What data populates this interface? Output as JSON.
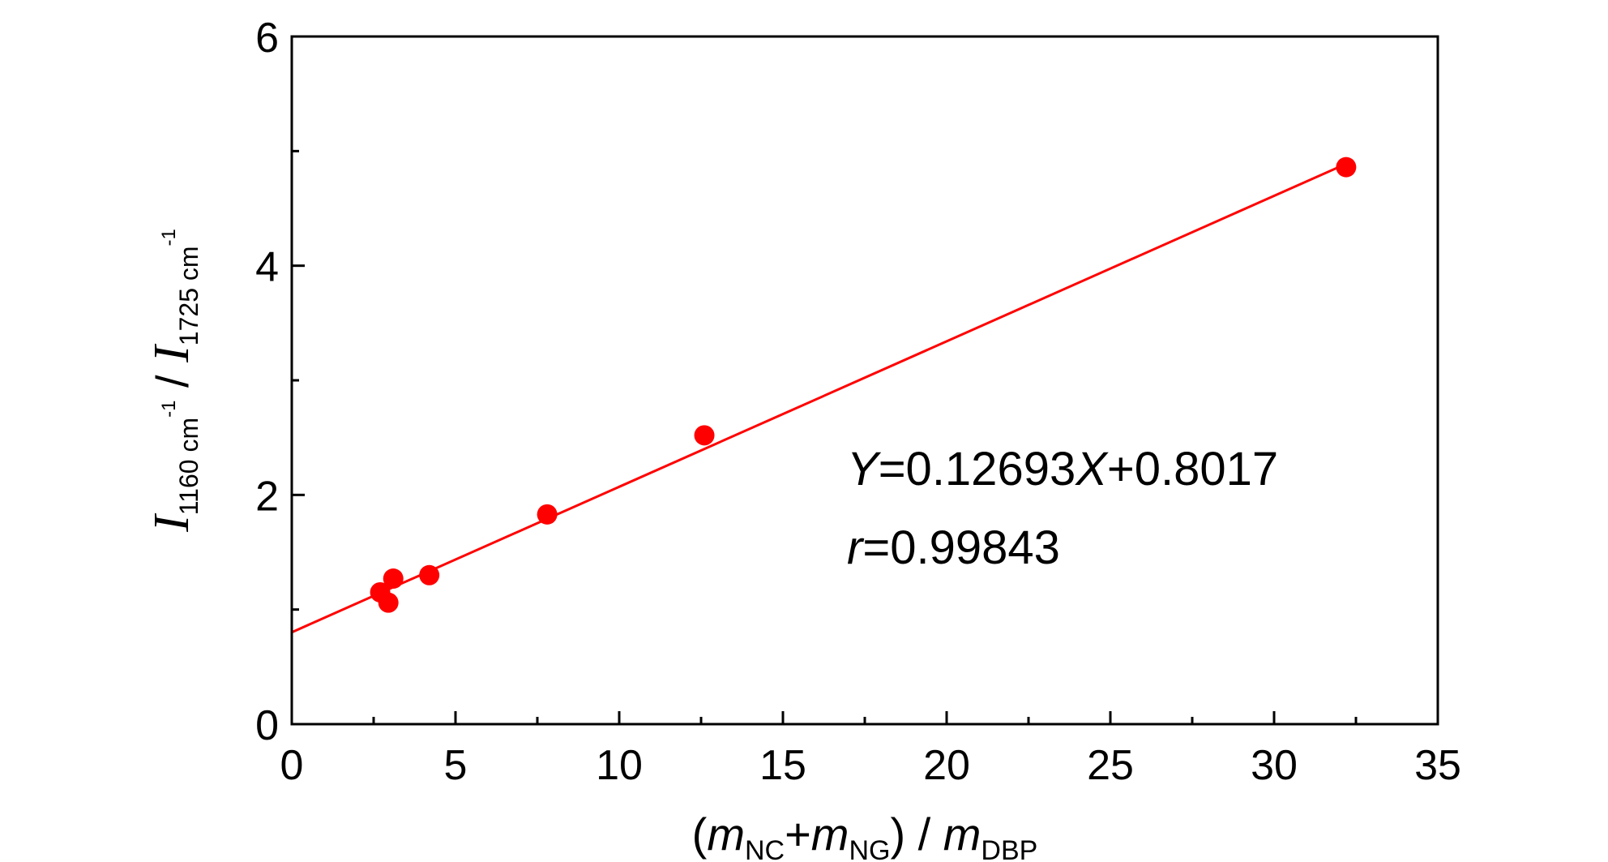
{
  "chart_data": {
    "type": "scatter",
    "xlim": [
      0,
      35
    ],
    "ylim": [
      0,
      6
    ],
    "x_ticks": [
      0,
      5,
      10,
      15,
      20,
      25,
      30,
      35
    ],
    "y_ticks": [
      0,
      2,
      4,
      6
    ],
    "y_minor_ticks": [
      1,
      3,
      5
    ],
    "grid": false,
    "xlabel": {
      "open": "(",
      "m1": "m",
      "sub1": "NC",
      "plus": "+",
      "m2": "m",
      "sub2": "NG",
      "sep": ") / ",
      "m3": "m",
      "sub3": "DBP"
    },
    "ylabel": {
      "i1": "I",
      "sub1": "1160 cm",
      "sup1": "-1",
      "sep": " / ",
      "i2": "I",
      "sub2": "1725 cm",
      "sup2": "-1"
    },
    "series": [
      {
        "points": [
          {
            "x": 2.7,
            "y": 1.15
          },
          {
            "x": 2.95,
            "y": 1.06
          },
          {
            "x": 3.1,
            "y": 1.27
          },
          {
            "x": 4.2,
            "y": 1.3
          },
          {
            "x": 7.8,
            "y": 1.83
          },
          {
            "x": 12.6,
            "y": 2.52
          },
          {
            "x": 32.2,
            "y": 4.86
          }
        ],
        "color": "#ff0000"
      }
    ],
    "fit": {
      "slope": 0.12693,
      "intercept": 0.8017,
      "x_range": [
        0,
        32.2
      ],
      "color": "#ff0000"
    },
    "annotations": {
      "equation": {
        "y_var": "Y",
        "eq1": "=0.12693",
        "x_var": "X",
        "eq2": "+0.8017"
      },
      "correlation": {
        "r_var": "r",
        "eq": "=0.99843"
      }
    }
  }
}
